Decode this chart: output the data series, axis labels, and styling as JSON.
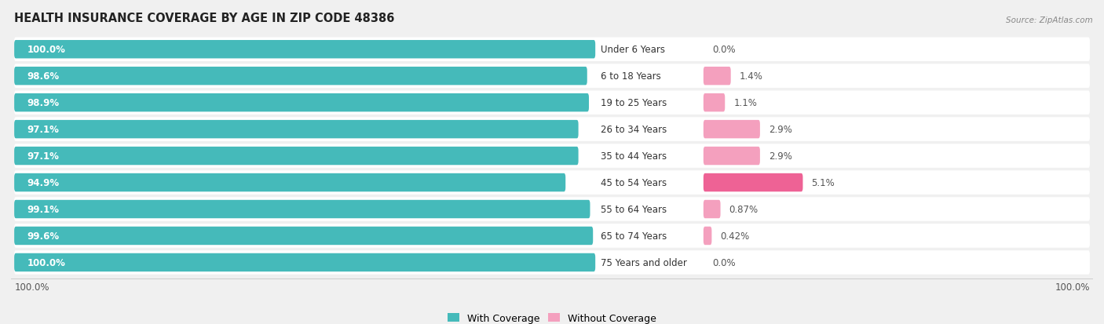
{
  "title": "HEALTH INSURANCE COVERAGE BY AGE IN ZIP CODE 48386",
  "source": "Source: ZipAtlas.com",
  "categories": [
    "Under 6 Years",
    "6 to 18 Years",
    "19 to 25 Years",
    "26 to 34 Years",
    "35 to 44 Years",
    "45 to 54 Years",
    "55 to 64 Years",
    "65 to 74 Years",
    "75 Years and older"
  ],
  "with_coverage": [
    100.0,
    98.6,
    98.9,
    97.1,
    97.1,
    94.9,
    99.1,
    99.6,
    100.0
  ],
  "without_coverage": [
    0.0,
    1.4,
    1.1,
    2.9,
    2.9,
    5.1,
    0.87,
    0.42,
    0.0
  ],
  "with_coverage_labels": [
    "100.0%",
    "98.6%",
    "98.9%",
    "97.1%",
    "97.1%",
    "94.9%",
    "99.1%",
    "99.6%",
    "100.0%"
  ],
  "without_coverage_labels": [
    "0.0%",
    "1.4%",
    "1.1%",
    "2.9%",
    "2.9%",
    "5.1%",
    "0.87%",
    "0.42%",
    "0.0%"
  ],
  "color_with": "#45BABA",
  "color_without": "#F4A0BE",
  "color_without_45_54": "#EE6295",
  "background_color": "#f0f0f0",
  "bar_background": "#ffffff",
  "title_fontsize": 10.5,
  "label_fontsize": 8.5,
  "cat_fontsize": 8.5,
  "tick_fontsize": 8.5,
  "legend_fontsize": 9,
  "bar_height": 0.68,
  "total_width": 100.0,
  "scale": 1.0
}
